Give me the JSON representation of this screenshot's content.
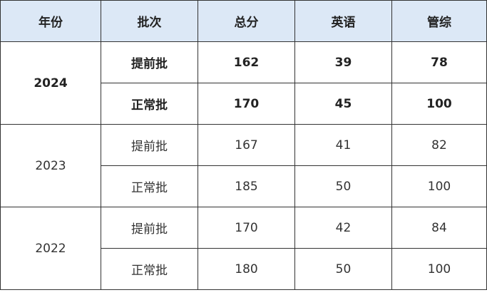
{
  "headers": [
    "年份",
    "批次",
    "总分",
    "英语",
    "管综"
  ],
  "years": [
    {
      "year": "2024",
      "bold": true,
      "rows": [
        {
          "batch": "提前批",
          "total": "162",
          "english": "39",
          "management": "78"
        },
        {
          "batch": "正常批",
          "total": "170",
          "english": "45",
          "management": "100"
        }
      ]
    },
    {
      "year": "2023",
      "bold": false,
      "rows": [
        {
          "batch": "提前批",
          "total": "167",
          "english": "41",
          "management": "82"
        },
        {
          "batch": "正常批",
          "total": "185",
          "english": "50",
          "management": "100"
        }
      ]
    },
    {
      "year": "2022",
      "bold": false,
      "rows": [
        {
          "batch": "提前批",
          "total": "170",
          "english": "42",
          "management": "84"
        },
        {
          "batch": "正常批",
          "total": "180",
          "english": "50",
          "management": "100"
        }
      ]
    }
  ],
  "colors": {
    "header_bg": "#dce8f6",
    "border": "#333333"
  }
}
